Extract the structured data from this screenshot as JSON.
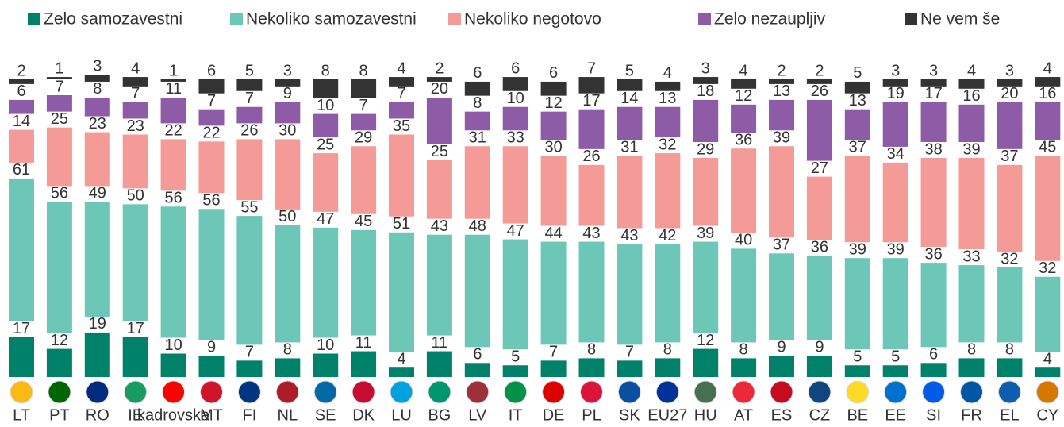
{
  "chart_data": {
    "type": "stacked_bar",
    "categories": [
      "LT",
      "PT",
      "RO",
      "IE",
      "kadrovska",
      "MT",
      "FI",
      "NL",
      "SE",
      "DK",
      "LU",
      "BG",
      "LV",
      "IT",
      "DE",
      "PL",
      "SK",
      "EU27",
      "HU",
      "AT",
      "ES",
      "CZ",
      "BE",
      "EE",
      "SI",
      "FR",
      "EL",
      "CY"
    ],
    "series": [
      {
        "name": "Zelo samozavestni",
        "color": "#00826a",
        "values": [
          17,
          12,
          19,
          17,
          10,
          9,
          7,
          8,
          10,
          11,
          4,
          11,
          6,
          5,
          7,
          8,
          7,
          8,
          12,
          8,
          9,
          9,
          5,
          5,
          6,
          8,
          8,
          4
        ]
      },
      {
        "name": "Nekoliko samozavestni",
        "color": "#6cc7b6",
        "values": [
          61,
          56,
          49,
          50,
          56,
          56,
          55,
          50,
          47,
          45,
          51,
          43,
          48,
          47,
          44,
          43,
          43,
          42,
          39,
          40,
          37,
          36,
          39,
          39,
          36,
          33,
          32,
          32
        ]
      },
      {
        "name": "Nekoliko negotovo",
        "color": "#f59b97",
        "values": [
          14,
          25,
          23,
          23,
          22,
          22,
          26,
          30,
          25,
          29,
          35,
          25,
          31,
          33,
          30,
          26,
          31,
          32,
          29,
          36,
          39,
          27,
          37,
          34,
          38,
          39,
          37,
          45
        ]
      },
      {
        "name": "Zelo nezaupljiv",
        "color": "#8e5ba6",
        "values": [
          6,
          7,
          8,
          7,
          11,
          7,
          7,
          9,
          10,
          7,
          7,
          20,
          8,
          10,
          12,
          17,
          14,
          13,
          18,
          12,
          13,
          26,
          13,
          19,
          17,
          16,
          20,
          16
        ]
      },
      {
        "name": "Ne vem še",
        "color": "#333333",
        "values": [
          2,
          1,
          3,
          4,
          1,
          6,
          5,
          3,
          8,
          8,
          4,
          2,
          6,
          6,
          6,
          7,
          5,
          4,
          3,
          4,
          2,
          2,
          5,
          3,
          3,
          4,
          3,
          4
        ]
      }
    ]
  }
}
